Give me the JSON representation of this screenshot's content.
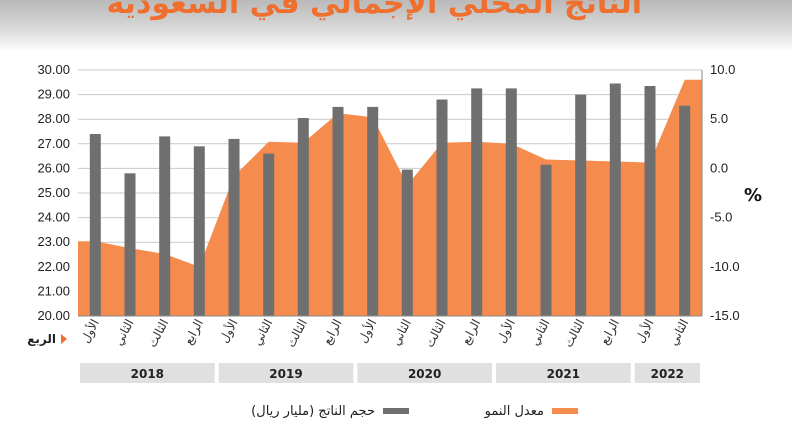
{
  "header": {
    "title": "الناتج المحلي الإجمالي في السعودية"
  },
  "chart_data": {
    "type": "bar+area",
    "row_label": "الربع",
    "quarters": [
      "الأول",
      "الثاني",
      "الثالث",
      "الرابع",
      "الأول",
      "الثاني",
      "الثالث",
      "الرابع",
      "الأول",
      "الثاني",
      "الثالث",
      "الرابع",
      "الأول",
      "الثاني",
      "الثالث",
      "الرابع",
      "الأول",
      "الثاني"
    ],
    "years": [
      {
        "label": "2018",
        "count": 4
      },
      {
        "label": "2019",
        "count": 4
      },
      {
        "label": "2020",
        "count": 4
      },
      {
        "label": "2021",
        "count": 4
      },
      {
        "label": "2022",
        "count": 2
      }
    ],
    "series": [
      {
        "name": "حجم الناتج (مليار ريال)",
        "type": "bar",
        "axis": "left",
        "color": "#6f6f6f",
        "values": [
          27.4,
          25.8,
          27.3,
          26.9,
          27.2,
          26.6,
          28.05,
          28.5,
          28.5,
          25.95,
          28.8,
          29.25,
          29.25,
          26.15,
          29.0,
          29.45,
          29.35,
          28.55
        ]
      },
      {
        "name": "معدل النمو",
        "type": "area",
        "axis": "right",
        "color": "#f58b4c",
        "values": [
          -7.4,
          -8.1,
          -8.7,
          -10.0,
          -0.8,
          2.7,
          2.6,
          5.6,
          5.2,
          -1.7,
          2.6,
          2.7,
          2.5,
          0.9,
          0.8,
          0.7,
          0.6,
          9.0
        ]
      }
    ],
    "left_axis": {
      "min": 20,
      "max": 30,
      "step": 1,
      "ticks": [
        "20.00",
        "21.00",
        "22.00",
        "23.00",
        "24.00",
        "25.00",
        "26.00",
        "27.00",
        "28.00",
        "29.00",
        "30.00"
      ]
    },
    "right_axis": {
      "min": -15,
      "max": 10,
      "unit": "%",
      "ticks": [
        "-15.0",
        "-10.0",
        "-5.0",
        "0.0",
        "5.0",
        "10.0"
      ]
    },
    "grid": true,
    "legend_position": "bottom"
  }
}
